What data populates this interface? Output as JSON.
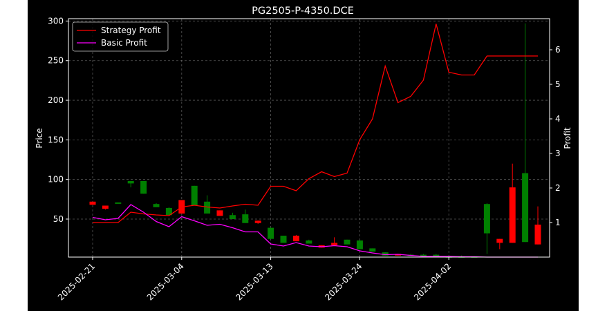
{
  "chart_data": {
    "type": "candlestick",
    "title": "PG2505-P-4350.DCE",
    "xlabel": "",
    "ylabel": "Price",
    "y2label": "Profit",
    "ylim": [
      2,
      303
    ],
    "y2lim": [
      0,
      6.9
    ],
    "yticks": [
      50,
      100,
      150,
      200,
      250,
      300
    ],
    "y2ticks": [
      1,
      2,
      3,
      4,
      5,
      6
    ],
    "xtick_labels": [
      "2025-02-21",
      "2025-03-04",
      "2025-03-13",
      "2025-03-24",
      "2025-04-02"
    ],
    "xtick_index": [
      0,
      7,
      14,
      21,
      28
    ],
    "grid": true,
    "legend": {
      "placement": "top-left",
      "entries": [
        {
          "label": "Strategy Profit",
          "color": "#ff0000"
        },
        {
          "label": "Basic Profit",
          "color": "#ff00ff"
        }
      ]
    },
    "colors": {
      "up": "#008000",
      "down": "#ff0000",
      "strategy": "#ff0000",
      "basic": "#ff00ff"
    },
    "candles": [
      {
        "o": 72,
        "h": 72,
        "l": 68,
        "c": 68
      },
      {
        "o": 67,
        "h": 67,
        "l": 62,
        "c": 63
      },
      {
        "o": 70,
        "h": 71,
        "l": 70,
        "c": 71
      },
      {
        "o": 95,
        "h": 98,
        "l": 90,
        "c": 98
      },
      {
        "o": 82,
        "h": 98,
        "l": 82,
        "c": 98
      },
      {
        "o": 65,
        "h": 70,
        "l": 65,
        "c": 69
      },
      {
        "o": 55,
        "h": 65,
        "l": 55,
        "c": 64
      },
      {
        "o": 74,
        "h": 74,
        "l": 57,
        "c": 57
      },
      {
        "o": 67,
        "h": 92,
        "l": 67,
        "c": 92
      },
      {
        "o": 57,
        "h": 80,
        "l": 57,
        "c": 72
      },
      {
        "o": 61,
        "h": 61,
        "l": 54,
        "c": 54
      },
      {
        "o": 50,
        "h": 58,
        "l": 50,
        "c": 55
      },
      {
        "o": 45,
        "h": 62,
        "l": 45,
        "c": 56
      },
      {
        "o": 48,
        "h": 48,
        "l": 44,
        "c": 45
      },
      {
        "o": 25,
        "h": 39,
        "l": 25,
        "c": 39
      },
      {
        "o": 20,
        "h": 29,
        "l": 20,
        "c": 29
      },
      {
        "o": 29,
        "h": 30,
        "l": 22,
        "c": 22
      },
      {
        "o": 19,
        "h": 24,
        "l": 19,
        "c": 23
      },
      {
        "o": 17,
        "h": 17,
        "l": 14,
        "c": 14
      },
      {
        "o": 20,
        "h": 27,
        "l": 17,
        "c": 17
      },
      {
        "o": 18,
        "h": 24,
        "l": 18,
        "c": 24
      },
      {
        "o": 12,
        "h": 23,
        "l": 12,
        "c": 23
      },
      {
        "o": 9,
        "h": 13,
        "l": 9,
        "c": 13
      },
      {
        "o": 4,
        "h": 8,
        "l": 4,
        "c": 8
      },
      {
        "o": 6,
        "h": 6,
        "l": 4,
        "c": 4
      },
      {
        "o": 4,
        "h": 6,
        "l": 4,
        "c": 5
      },
      {
        "o": 3,
        "h": 6,
        "l": 3,
        "c": 5
      },
      {
        "o": 3,
        "h": 6,
        "l": 3,
        "c": 5
      },
      {
        "o": 3,
        "h": 3,
        "l": 2,
        "c": 3
      },
      {
        "o": 2,
        "h": 4,
        "l": 2,
        "c": 3
      },
      {
        "o": 2,
        "h": 3,
        "l": 2,
        "c": 3
      },
      {
        "o": 32,
        "h": 70,
        "l": 6,
        "c": 69
      },
      {
        "o": 25,
        "h": 25,
        "l": 12,
        "c": 20
      },
      {
        "o": 90,
        "h": 120,
        "l": 20,
        "c": 20
      },
      {
        "o": 21,
        "h": 297,
        "l": 21,
        "c": 108
      },
      {
        "o": 43,
        "h": 66,
        "l": 18,
        "c": 18
      }
    ],
    "series": [
      {
        "name": "Strategy Profit",
        "values": [
          1.0,
          1.0,
          1.0,
          1.3,
          1.25,
          1.22,
          1.2,
          1.45,
          1.5,
          1.45,
          1.42,
          1.48,
          1.53,
          1.5,
          2.05,
          2.05,
          1.92,
          2.27,
          2.47,
          2.33,
          2.43,
          3.4,
          4.0,
          5.53,
          4.47,
          4.65,
          5.12,
          6.75,
          5.35,
          5.27,
          5.27,
          5.82,
          5.82,
          5.82,
          5.82,
          5.82
        ]
      },
      {
        "name": "Basic Profit",
        "values": [
          1.15,
          1.08,
          1.12,
          1.52,
          1.3,
          1.03,
          0.88,
          1.17,
          1.05,
          0.92,
          0.95,
          0.85,
          0.73,
          0.73,
          0.38,
          0.32,
          0.42,
          0.32,
          0.3,
          0.33,
          0.3,
          0.18,
          0.12,
          0.07,
          0.08,
          0.05,
          0.02,
          0.02,
          0.02,
          0.01,
          0.01,
          0.0,
          0.0,
          0.0,
          0.0,
          0.0
        ]
      }
    ]
  }
}
